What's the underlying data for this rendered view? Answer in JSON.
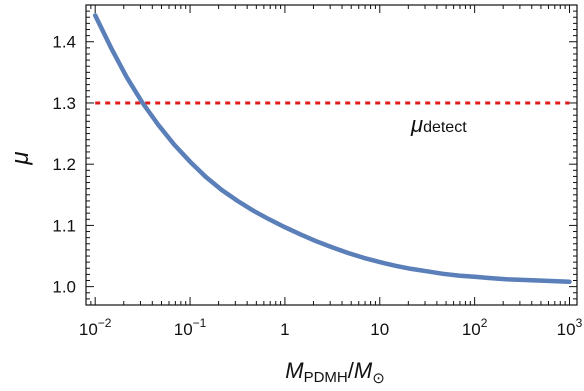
{
  "chart_data": {
    "type": "line",
    "xscale": "log",
    "xlim": [
      0.008,
      1200
    ],
    "ylim": [
      0.97,
      1.46
    ],
    "xticks": [
      {
        "value": 0.01,
        "base": "10",
        "exp": "−2"
      },
      {
        "value": 0.1,
        "base": "10",
        "exp": "−1"
      },
      {
        "value": 1,
        "base": "1",
        "exp": ""
      },
      {
        "value": 10,
        "base": "10",
        "exp": ""
      },
      {
        "value": 100,
        "base": "10",
        "exp": "2"
      },
      {
        "value": 1000,
        "base": "10",
        "exp": "3"
      }
    ],
    "yticks": [
      "1.0",
      "1.1",
      "1.2",
      "1.3",
      "1.4"
    ],
    "ylabel": "μ",
    "xlabel": {
      "m": "M",
      "sub1": "PDMH",
      "slash": "/",
      "m2": "M",
      "sub2": "⊙"
    },
    "series": [
      {
        "color": "#5b7fb9",
        "x": [
          0.01,
          0.0147,
          0.0215,
          0.0316,
          0.0464,
          0.0681,
          0.1,
          0.147,
          0.215,
          0.316,
          0.464,
          0.681,
          1,
          1.47,
          2.15,
          3.16,
          4.64,
          6.81,
          10,
          14.7,
          21.5,
          31.6,
          46.4,
          68.1,
          100,
          147,
          215,
          316,
          464,
          681,
          1000
        ],
        "y": [
          1.443,
          1.39,
          1.342,
          1.3,
          1.264,
          1.232,
          1.204,
          1.179,
          1.158,
          1.14,
          1.124,
          1.11,
          1.097,
          1.085,
          1.074,
          1.064,
          1.055,
          1.047,
          1.04,
          1.034,
          1.029,
          1.025,
          1.021,
          1.018,
          1.016,
          1.014,
          1.012,
          1.011,
          1.01,
          1.009,
          1.008
        ]
      }
    ],
    "threshold": {
      "value": 1.3,
      "color": "#e11a1a",
      "label": "μ",
      "label_sub": "detect"
    }
  }
}
